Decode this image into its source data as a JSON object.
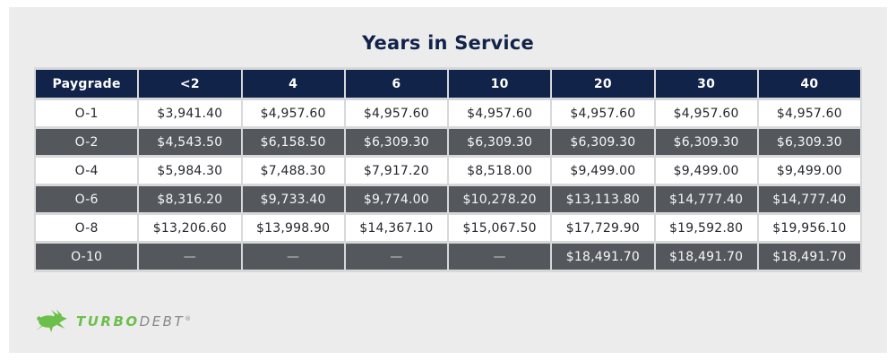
{
  "title": "Years in Service",
  "chart_data": {
    "type": "table",
    "title": "Years in Service",
    "columns": [
      "Paygrade",
      "<2",
      "4",
      "6",
      "10",
      "20",
      "30",
      "40"
    ],
    "rows": [
      {
        "paygrade": "O-1",
        "values": [
          "$3,941.40",
          "$4,957.60",
          "$4,957.60",
          "$4,957.60",
          "$4,957.60",
          "$4,957.60",
          "$4,957.60"
        ]
      },
      {
        "paygrade": "O-2",
        "values": [
          "$4,543.50",
          "$6,158.50",
          "$6,309.30",
          "$6,309.30",
          "$6,309.30",
          "$6,309.30",
          "$6,309.30"
        ]
      },
      {
        "paygrade": "O-4",
        "values": [
          "$5,984.30",
          "$7,488.30",
          "$7,917.20",
          "$8,518.00",
          "$9,499.00",
          "$9,499.00",
          "$9,499.00"
        ]
      },
      {
        "paygrade": "O-6",
        "values": [
          "$8,316.20",
          "$9,733.40",
          "$9,774.00",
          "$10,278.20",
          "$13,113.80",
          "$14,777.40",
          "$14,777.40"
        ]
      },
      {
        "paygrade": "O-8",
        "values": [
          "$13,206.60",
          "$13,998.90",
          "$14,367.10",
          "$15,067.50",
          "$17,729.90",
          "$19,592.80",
          "$19,956.10"
        ]
      },
      {
        "paygrade": "O-10",
        "values": [
          "—",
          "—",
          "—",
          "—",
          "$18,491.70",
          "$18,491.70",
          "$18,491.70"
        ]
      }
    ]
  },
  "logo": {
    "brand_primary": "TURBO",
    "brand_secondary": "DEBT",
    "registered_mark": "®",
    "icon": "rabbit-icon"
  },
  "colors": {
    "header_navy": "#12234a",
    "row_dark_gray": "#54575c",
    "row_white": "#ffffff",
    "card_background": "#ececec",
    "grid_line": "#d7d8d9",
    "title_navy": "#12234a",
    "brand_green": "#6cbf4b",
    "brand_gray": "#85888c"
  }
}
